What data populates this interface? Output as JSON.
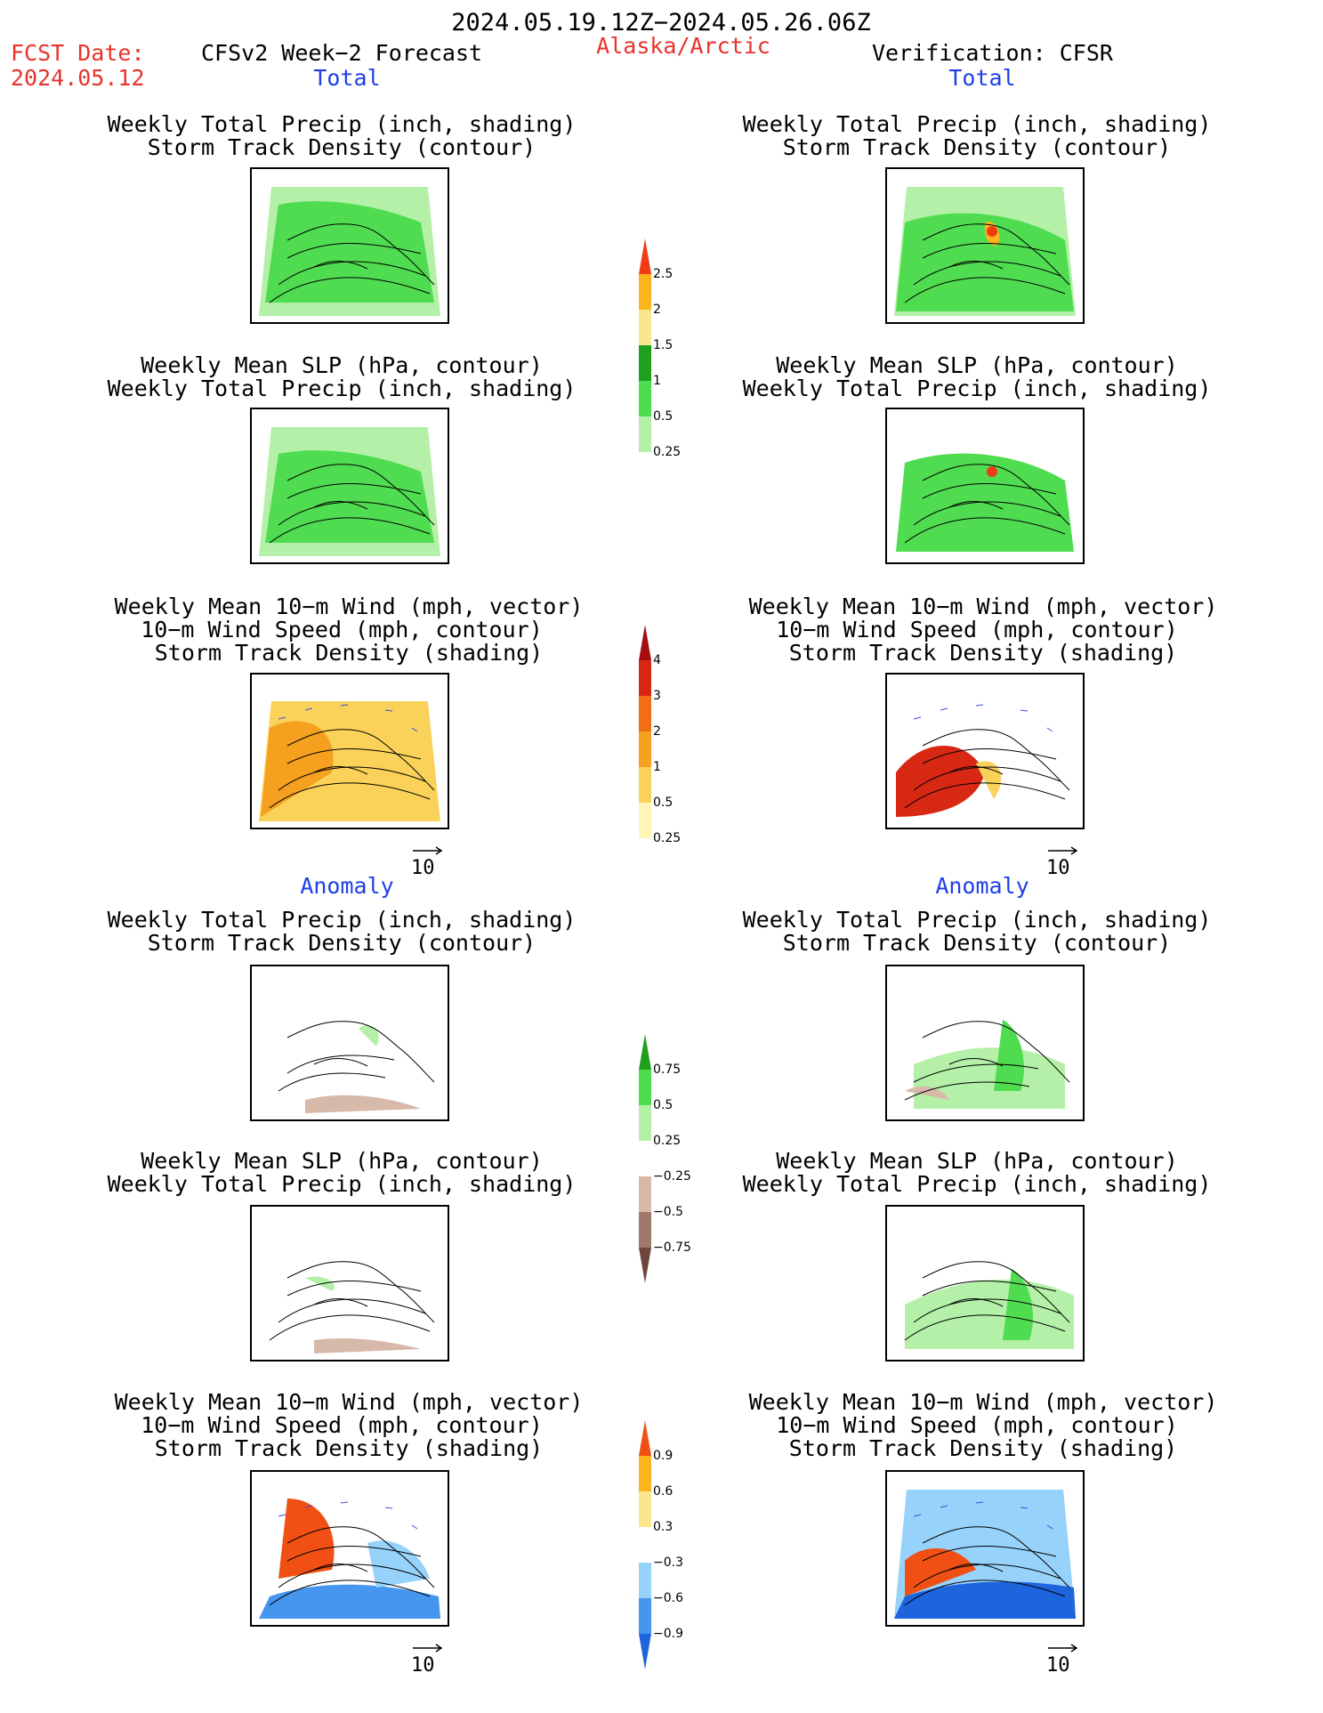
{
  "header": {
    "period": "2024.05.19.12Z−2024.05.26.06Z",
    "fcst_label": "FCST Date:",
    "fcst_date": "2024.05.12",
    "model_title": "CFSv2 Week−2 Forecast",
    "region": "Alaska/Arctic",
    "verification": "Verification: CFSR"
  },
  "sections": {
    "total": "Total",
    "anomaly": "Anomaly"
  },
  "panel_titles": {
    "precip_storm": [
      "Weekly Total Precip (inch, shading)",
      "Storm Track Density (contour)"
    ],
    "slp_precip": [
      "Weekly Mean SLP (hPa, contour)",
      "Weekly Total Precip (inch, shading)"
    ],
    "wind_storm": [
      "Weekly Mean 10−m Wind (mph, vector)",
      "10−m Wind Speed (mph, contour)",
      "Storm Track Density (shading)"
    ]
  },
  "vector_ref": "10",
  "colors": {
    "header_red": "#e8322b",
    "section_blue": "#1f3fe6",
    "vector_blue": "#3b4fd8"
  },
  "chart_data": [
    {
      "type": "heatmap",
      "role": "colorbar",
      "name": "total_precip",
      "levels": [
        "0.25",
        "0.5",
        "1",
        "1.5",
        "2",
        "2.5"
      ],
      "colors": [
        "#ffffff",
        "#b4f0a8",
        "#50dc50",
        "#1ea01e",
        "#fae68c",
        "#fab41e",
        "#f03c14"
      ]
    },
    {
      "type": "heatmap",
      "role": "colorbar",
      "name": "total_storm_density",
      "levels": [
        "0.25",
        "0.5",
        "1",
        "2",
        "3",
        "4"
      ],
      "colors": [
        "#ffffff",
        "#fff5b4",
        "#fad25a",
        "#f5a01e",
        "#f06e14",
        "#d72814",
        "#a50f0f"
      ]
    },
    {
      "type": "heatmap",
      "role": "colorbar",
      "name": "anomaly_precip",
      "levels": [
        "−0.75",
        "−0.5",
        "−0.25",
        "0.25",
        "0.5",
        "0.75"
      ],
      "colors": [
        "#6e463c",
        "#a0786e",
        "#d7b9aa",
        "#ffffff",
        "#b4f0a8",
        "#50dc50",
        "#1ea01e"
      ]
    },
    {
      "type": "heatmap",
      "role": "colorbar",
      "name": "anomaly_storm_density",
      "levels": [
        "−0.9",
        "−0.6",
        "−0.3",
        "0.3",
        "0.6",
        "0.9"
      ],
      "colors": [
        "#1e64dc",
        "#4696f0",
        "#96d2fa",
        "#ffffff",
        "#fae68c",
        "#fab41e",
        "#f05014"
      ]
    }
  ]
}
